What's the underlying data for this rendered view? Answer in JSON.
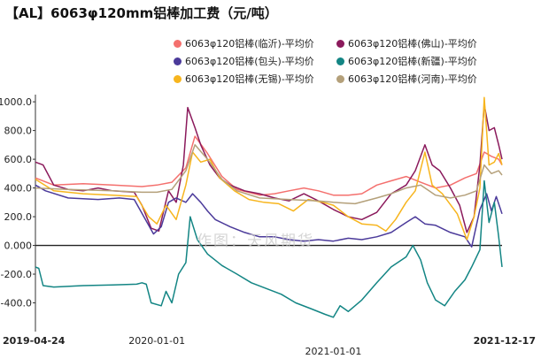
{
  "title": "【AL】6063φ120mm铝棒加工费（元/吨）",
  "watermark": "作图：天风期货",
  "chart_data": {
    "type": "line",
    "title": "【AL】6063φ120mm铝棒加工费（元/吨）",
    "unit": "元/吨",
    "xlabel": "",
    "ylabel": "",
    "x_range": [
      "2019-04-24",
      "2021-12-17"
    ],
    "x_ticks": [
      {
        "label": "2019-04-24",
        "date": "2019-04-24",
        "bold": true,
        "row": 1
      },
      {
        "label": "2020-01-01",
        "date": "2020-01-01",
        "bold": false,
        "row": 1
      },
      {
        "label": "2021-01-01",
        "date": "2021-01-01",
        "bold": false,
        "row": 2
      },
      {
        "label": "2021-12-17",
        "date": "2021-12-17",
        "bold": true,
        "row": 1
      }
    ],
    "ylim": [
      -600,
      1050
    ],
    "y_ticks": [
      {
        "label": "1000.0",
        "value": 1000
      },
      {
        "label": "800.0",
        "value": 800
      },
      {
        "label": "600.0",
        "value": 600
      },
      {
        "label": "400.0",
        "value": 400
      },
      {
        "label": "200.0",
        "value": 200
      },
      {
        "label": "0.000",
        "value": 0
      },
      {
        "label": "-200.0",
        "value": -200
      },
      {
        "label": "-400.0",
        "value": -400
      }
    ],
    "grid": false,
    "legend_position": "top-right",
    "series": [
      {
        "name": "6063φ120铝棒(临沂)-平均价",
        "color": "#f4706e",
        "points": [
          [
            "2019-04-24",
            470
          ],
          [
            "2019-06-01",
            420
          ],
          [
            "2019-08-01",
            430
          ],
          [
            "2019-10-01",
            420
          ],
          [
            "2019-12-01",
            410
          ],
          [
            "2020-01-01",
            420
          ],
          [
            "2020-02-01",
            440
          ],
          [
            "2020-03-01",
            540
          ],
          [
            "2020-03-20",
            760
          ],
          [
            "2020-04-15",
            640
          ],
          [
            "2020-05-15",
            480
          ],
          [
            "2020-06-15",
            390
          ],
          [
            "2020-08-01",
            350
          ],
          [
            "2020-09-01",
            360
          ],
          [
            "2020-10-01",
            380
          ],
          [
            "2020-11-01",
            400
          ],
          [
            "2020-12-01",
            380
          ],
          [
            "2021-01-01",
            350
          ],
          [
            "2021-02-01",
            350
          ],
          [
            "2021-03-01",
            360
          ],
          [
            "2021-04-01",
            420
          ],
          [
            "2021-05-01",
            450
          ],
          [
            "2021-06-01",
            480
          ],
          [
            "2021-07-01",
            440
          ],
          [
            "2021-08-01",
            400
          ],
          [
            "2021-09-01",
            420
          ],
          [
            "2021-10-01",
            470
          ],
          [
            "2021-10-25",
            500
          ],
          [
            "2021-11-10",
            650
          ],
          [
            "2021-11-25",
            620
          ],
          [
            "2021-12-10",
            600
          ],
          [
            "2021-12-17",
            560
          ]
        ]
      },
      {
        "name": "6063φ120铝棒(佛山)-平均价",
        "color": "#8b1a5c",
        "points": [
          [
            "2019-04-24",
            580
          ],
          [
            "2019-05-10",
            560
          ],
          [
            "2019-06-01",
            420
          ],
          [
            "2019-07-01",
            390
          ],
          [
            "2019-08-01",
            380
          ],
          [
            "2019-09-01",
            400
          ],
          [
            "2019-10-01",
            380
          ],
          [
            "2019-11-15",
            370
          ],
          [
            "2019-12-01",
            280
          ],
          [
            "2019-12-20",
            120
          ],
          [
            "2020-01-05",
            100
          ],
          [
            "2020-01-25",
            380
          ],
          [
            "2020-02-10",
            300
          ],
          [
            "2020-02-25",
            560
          ],
          [
            "2020-03-05",
            960
          ],
          [
            "2020-03-20",
            820
          ],
          [
            "2020-04-01",
            700
          ],
          [
            "2020-04-20",
            560
          ],
          [
            "2020-05-10",
            470
          ],
          [
            "2020-06-01",
            420
          ],
          [
            "2020-07-01",
            380
          ],
          [
            "2020-08-01",
            360
          ],
          [
            "2020-09-01",
            330
          ],
          [
            "2020-10-01",
            310
          ],
          [
            "2020-11-01",
            360
          ],
          [
            "2020-12-01",
            310
          ],
          [
            "2021-01-01",
            250
          ],
          [
            "2021-02-01",
            200
          ],
          [
            "2021-03-01",
            180
          ],
          [
            "2021-04-01",
            230
          ],
          [
            "2021-05-01",
            360
          ],
          [
            "2021-06-01",
            420
          ],
          [
            "2021-06-20",
            520
          ],
          [
            "2021-07-10",
            700
          ],
          [
            "2021-07-25",
            560
          ],
          [
            "2021-08-10",
            520
          ],
          [
            "2021-09-01",
            400
          ],
          [
            "2021-09-20",
            280
          ],
          [
            "2021-10-05",
            90
          ],
          [
            "2021-10-20",
            200
          ],
          [
            "2021-11-01",
            560
          ],
          [
            "2021-11-10",
            980
          ],
          [
            "2021-11-20",
            800
          ],
          [
            "2021-12-01",
            820
          ],
          [
            "2021-12-10",
            700
          ],
          [
            "2021-12-17",
            600
          ]
        ]
      },
      {
        "name": "6063φ120铝棒(包头)-平均价",
        "color": "#4b3a9a",
        "points": [
          [
            "2019-04-24",
            420
          ],
          [
            "2019-05-15",
            380
          ],
          [
            "2019-07-01",
            330
          ],
          [
            "2019-09-01",
            320
          ],
          [
            "2019-10-15",
            330
          ],
          [
            "2019-11-15",
            320
          ],
          [
            "2019-12-05",
            200
          ],
          [
            "2019-12-25",
            80
          ],
          [
            "2020-01-10",
            130
          ],
          [
            "2020-01-25",
            300
          ],
          [
            "2020-02-10",
            330
          ],
          [
            "2020-03-01",
            300
          ],
          [
            "2020-03-15",
            360
          ],
          [
            "2020-04-01",
            300
          ],
          [
            "2020-04-15",
            240
          ],
          [
            "2020-05-01",
            180
          ],
          [
            "2020-06-01",
            130
          ],
          [
            "2020-07-01",
            90
          ],
          [
            "2020-08-01",
            60
          ],
          [
            "2020-09-01",
            60
          ],
          [
            "2020-10-01",
            40
          ],
          [
            "2020-11-01",
            30
          ],
          [
            "2020-12-01",
            40
          ],
          [
            "2021-01-01",
            30
          ],
          [
            "2021-02-01",
            50
          ],
          [
            "2021-03-01",
            40
          ],
          [
            "2021-04-01",
            60
          ],
          [
            "2021-05-01",
            90
          ],
          [
            "2021-06-01",
            160
          ],
          [
            "2021-06-20",
            200
          ],
          [
            "2021-07-10",
            150
          ],
          [
            "2021-08-01",
            140
          ],
          [
            "2021-09-01",
            90
          ],
          [
            "2021-10-01",
            60
          ],
          [
            "2021-10-15",
            -10
          ],
          [
            "2021-11-01",
            250
          ],
          [
            "2021-11-15",
            360
          ],
          [
            "2021-11-25",
            240
          ],
          [
            "2021-12-05",
            340
          ],
          [
            "2021-12-17",
            220
          ]
        ]
      },
      {
        "name": "6063φ120铝棒(新疆)-平均价",
        "color": "#138584",
        "points": [
          [
            "2019-04-24",
            -150
          ],
          [
            "2019-05-01",
            -160
          ],
          [
            "2019-05-10",
            -280
          ],
          [
            "2019-06-01",
            -290
          ],
          [
            "2019-08-01",
            -280
          ],
          [
            "2019-10-01",
            -275
          ],
          [
            "2019-11-20",
            -270
          ],
          [
            "2019-12-01",
            -260
          ],
          [
            "2019-12-10",
            -270
          ],
          [
            "2019-12-20",
            -400
          ],
          [
            "2020-01-10",
            -420
          ],
          [
            "2020-01-20",
            -320
          ],
          [
            "2020-02-01",
            -400
          ],
          [
            "2020-02-15",
            -200
          ],
          [
            "2020-03-01",
            -120
          ],
          [
            "2020-03-10",
            200
          ],
          [
            "2020-03-25",
            40
          ],
          [
            "2020-04-15",
            -60
          ],
          [
            "2020-05-15",
            -140
          ],
          [
            "2020-06-15",
            -200
          ],
          [
            "2020-07-15",
            -260
          ],
          [
            "2020-08-15",
            -300
          ],
          [
            "2020-09-15",
            -340
          ],
          [
            "2020-10-15",
            -400
          ],
          [
            "2020-11-15",
            -440
          ],
          [
            "2020-12-15",
            -480
          ],
          [
            "2021-01-01",
            -500
          ],
          [
            "2021-01-15",
            -420
          ],
          [
            "2021-02-01",
            -460
          ],
          [
            "2021-03-01",
            -380
          ],
          [
            "2021-04-01",
            -260
          ],
          [
            "2021-05-01",
            -150
          ],
          [
            "2021-06-01",
            -80
          ],
          [
            "2021-06-15",
            0
          ],
          [
            "2021-07-01",
            -100
          ],
          [
            "2021-07-15",
            -260
          ],
          [
            "2021-08-01",
            -380
          ],
          [
            "2021-08-20",
            -420
          ],
          [
            "2021-09-10",
            -320
          ],
          [
            "2021-10-01",
            -240
          ],
          [
            "2021-10-15",
            -150
          ],
          [
            "2021-11-01",
            -30
          ],
          [
            "2021-11-10",
            450
          ],
          [
            "2021-11-20",
            160
          ],
          [
            "2021-12-01",
            300
          ],
          [
            "2021-12-10",
            60
          ],
          [
            "2021-12-17",
            -150
          ]
        ]
      },
      {
        "name": "6063φ120铝棒(无锡)-平均价",
        "color": "#f7b51e",
        "points": [
          [
            "2019-04-24",
            460
          ],
          [
            "2019-06-01",
            380
          ],
          [
            "2019-08-01",
            360
          ],
          [
            "2019-10-01",
            350
          ],
          [
            "2019-11-20",
            340
          ],
          [
            "2019-12-15",
            200
          ],
          [
            "2020-01-01",
            150
          ],
          [
            "2020-01-20",
            280
          ],
          [
            "2020-02-10",
            180
          ],
          [
            "2020-03-01",
            420
          ],
          [
            "2020-03-15",
            650
          ],
          [
            "2020-04-01",
            580
          ],
          [
            "2020-04-20",
            600
          ],
          [
            "2020-05-10",
            470
          ],
          [
            "2020-06-10",
            380
          ],
          [
            "2020-07-10",
            320
          ],
          [
            "2020-08-10",
            300
          ],
          [
            "2020-09-10",
            290
          ],
          [
            "2020-10-10",
            240
          ],
          [
            "2020-11-10",
            320
          ],
          [
            "2020-12-10",
            300
          ],
          [
            "2021-01-01",
            280
          ],
          [
            "2021-02-01",
            200
          ],
          [
            "2021-03-01",
            150
          ],
          [
            "2021-04-01",
            140
          ],
          [
            "2021-04-20",
            100
          ],
          [
            "2021-05-10",
            180
          ],
          [
            "2021-06-01",
            300
          ],
          [
            "2021-06-20",
            380
          ],
          [
            "2021-07-10",
            650
          ],
          [
            "2021-07-25",
            420
          ],
          [
            "2021-08-15",
            360
          ],
          [
            "2021-09-15",
            220
          ],
          [
            "2021-10-05",
            40
          ],
          [
            "2021-10-20",
            200
          ],
          [
            "2021-11-01",
            400
          ],
          [
            "2021-11-10",
            1030
          ],
          [
            "2021-11-20",
            560
          ],
          [
            "2021-12-01",
            580
          ],
          [
            "2021-12-10",
            640
          ],
          [
            "2021-12-17",
            560
          ]
        ]
      },
      {
        "name": "6063φ120铝棒(河南)-平均价",
        "color": "#b4a07a",
        "points": [
          [
            "2019-04-24",
            400
          ],
          [
            "2019-07-01",
            390
          ],
          [
            "2019-10-01",
            380
          ],
          [
            "2019-12-01",
            370
          ],
          [
            "2020-01-01",
            370
          ],
          [
            "2020-02-01",
            390
          ],
          [
            "2020-03-01",
            520
          ],
          [
            "2020-03-20",
            700
          ],
          [
            "2020-04-15",
            600
          ],
          [
            "2020-05-15",
            460
          ],
          [
            "2020-06-15",
            380
          ],
          [
            "2020-08-01",
            330
          ],
          [
            "2020-10-01",
            320
          ],
          [
            "2020-12-01",
            310
          ],
          [
            "2021-01-01",
            300
          ],
          [
            "2021-02-15",
            290
          ],
          [
            "2021-04-01",
            330
          ],
          [
            "2021-05-01",
            360
          ],
          [
            "2021-06-01",
            400
          ],
          [
            "2021-07-01",
            420
          ],
          [
            "2021-08-01",
            350
          ],
          [
            "2021-09-01",
            330
          ],
          [
            "2021-10-01",
            350
          ],
          [
            "2021-10-25",
            380
          ],
          [
            "2021-11-10",
            560
          ],
          [
            "2021-11-25",
            500
          ],
          [
            "2021-12-10",
            520
          ],
          [
            "2021-12-17",
            490
          ]
        ]
      }
    ]
  }
}
